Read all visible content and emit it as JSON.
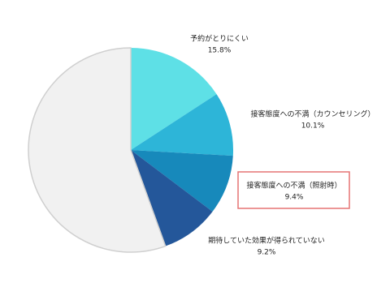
{
  "chart_data": {
    "type": "pie",
    "categories": [
      "予約がとりにくい",
      "接客態度への不満（カウンセリング）",
      "接客態度への不満（照射時）",
      "期待していた効果が得られていない",
      null
    ],
    "values": [
      15.8,
      10.1,
      9.4,
      9.2,
      55.5
    ],
    "value_labels": [
      "15.8%",
      "10.1%",
      "9.4%",
      "9.2%",
      null
    ],
    "colors": [
      "#5ee0e6",
      "#2db5d8",
      "#1789bb",
      "#24579a",
      "#f1f1f1"
    ]
  }
}
